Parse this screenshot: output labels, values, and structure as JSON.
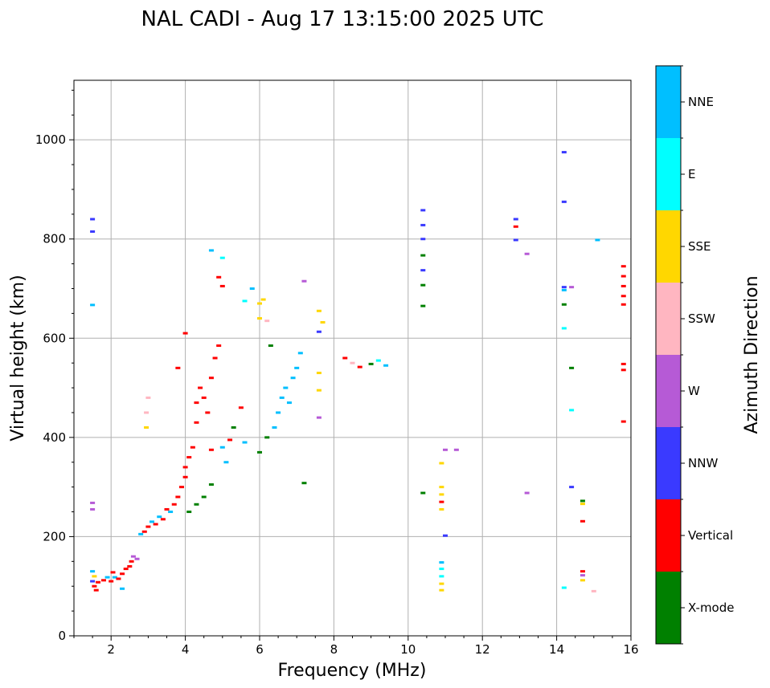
{
  "chart_data": {
    "type": "scatter",
    "title": "NAL CADI - Aug 17 13:15:00 2025 UTC",
    "xlabel": "Frequency (MHz)",
    "ylabel": "Virtual height (km)",
    "xlim": [
      1,
      16
    ],
    "ylim": [
      0,
      1120
    ],
    "xticks": [
      2,
      4,
      6,
      8,
      10,
      12,
      14,
      16
    ],
    "yticks": [
      0,
      200,
      400,
      600,
      800,
      1000
    ],
    "grid": true,
    "colorbar": {
      "label": "Azimuth Direction",
      "categories": [
        {
          "name": "X-mode",
          "color": "#008000"
        },
        {
          "name": "Vertical",
          "color": "#ff0000"
        },
        {
          "name": "NNW",
          "color": "#3a3aff"
        },
        {
          "name": "W",
          "color": "#b65ad6"
        },
        {
          "name": "SSW",
          "color": "#ffb6c1"
        },
        {
          "name": "SSE",
          "color": "#ffd700"
        },
        {
          "name": "E",
          "color": "#00ffff"
        },
        {
          "name": "NNE",
          "color": "#00bfff"
        }
      ]
    },
    "points": [
      {
        "f": 1.5,
        "h": 840,
        "dir": "NNW"
      },
      {
        "f": 1.5,
        "h": 815,
        "dir": "NNW"
      },
      {
        "f": 1.5,
        "h": 667,
        "dir": "NNE"
      },
      {
        "f": 1.5,
        "h": 268,
        "dir": "W"
      },
      {
        "f": 1.5,
        "h": 255,
        "dir": "W"
      },
      {
        "f": 1.5,
        "h": 130,
        "dir": "NNE"
      },
      {
        "f": 1.55,
        "h": 120,
        "dir": "SSE"
      },
      {
        "f": 1.5,
        "h": 110,
        "dir": "NNW"
      },
      {
        "f": 1.55,
        "h": 100,
        "dir": "Vertical"
      },
      {
        "f": 1.6,
        "h": 92,
        "dir": "Vertical"
      },
      {
        "f": 1.65,
        "h": 108,
        "dir": "Vertical"
      },
      {
        "f": 1.8,
        "h": 112,
        "dir": "Vertical"
      },
      {
        "f": 1.9,
        "h": 118,
        "dir": "NNE"
      },
      {
        "f": 2.0,
        "h": 110,
        "dir": "Vertical"
      },
      {
        "f": 2.05,
        "h": 128,
        "dir": "Vertical"
      },
      {
        "f": 2.1,
        "h": 118,
        "dir": "NNE"
      },
      {
        "f": 2.2,
        "h": 115,
        "dir": "Vertical"
      },
      {
        "f": 2.3,
        "h": 125,
        "dir": "Vertical"
      },
      {
        "f": 2.3,
        "h": 95,
        "dir": "NNE"
      },
      {
        "f": 2.4,
        "h": 135,
        "dir": "Vertical"
      },
      {
        "f": 2.5,
        "h": 140,
        "dir": "Vertical"
      },
      {
        "f": 2.55,
        "h": 150,
        "dir": "Vertical"
      },
      {
        "f": 2.6,
        "h": 160,
        "dir": "W"
      },
      {
        "f": 2.7,
        "h": 155,
        "dir": "W"
      },
      {
        "f": 2.8,
        "h": 205,
        "dir": "NNE"
      },
      {
        "f": 2.9,
        "h": 210,
        "dir": "Vertical"
      },
      {
        "f": 3.0,
        "h": 220,
        "dir": "Vertical"
      },
      {
        "f": 3.0,
        "h": 480,
        "dir": "SSW"
      },
      {
        "f": 2.95,
        "h": 450,
        "dir": "SSW"
      },
      {
        "f": 2.95,
        "h": 420,
        "dir": "SSE"
      },
      {
        "f": 3.1,
        "h": 230,
        "dir": "NNE"
      },
      {
        "f": 3.2,
        "h": 225,
        "dir": "Vertical"
      },
      {
        "f": 3.3,
        "h": 240,
        "dir": "NNE"
      },
      {
        "f": 3.4,
        "h": 235,
        "dir": "Vertical"
      },
      {
        "f": 3.5,
        "h": 255,
        "dir": "Vertical"
      },
      {
        "f": 3.6,
        "h": 250,
        "dir": "NNE"
      },
      {
        "f": 3.7,
        "h": 265,
        "dir": "Vertical"
      },
      {
        "f": 3.8,
        "h": 280,
        "dir": "Vertical"
      },
      {
        "f": 3.9,
        "h": 300,
        "dir": "Vertical"
      },
      {
        "f": 4.0,
        "h": 320,
        "dir": "Vertical"
      },
      {
        "f": 4.0,
        "h": 340,
        "dir": "Vertical"
      },
      {
        "f": 4.1,
        "h": 360,
        "dir": "Vertical"
      },
      {
        "f": 4.1,
        "h": 250,
        "dir": "X-mode"
      },
      {
        "f": 4.3,
        "h": 265,
        "dir": "X-mode"
      },
      {
        "f": 4.5,
        "h": 280,
        "dir": "X-mode"
      },
      {
        "f": 4.7,
        "h": 305,
        "dir": "X-mode"
      },
      {
        "f": 4.0,
        "h": 610,
        "dir": "Vertical"
      },
      {
        "f": 3.8,
        "h": 540,
        "dir": "Vertical"
      },
      {
        "f": 4.2,
        "h": 380,
        "dir": "Vertical"
      },
      {
        "f": 4.3,
        "h": 430,
        "dir": "Vertical"
      },
      {
        "f": 4.3,
        "h": 470,
        "dir": "Vertical"
      },
      {
        "f": 4.4,
        "h": 500,
        "dir": "Vertical"
      },
      {
        "f": 4.5,
        "h": 480,
        "dir": "Vertical"
      },
      {
        "f": 4.6,
        "h": 450,
        "dir": "Vertical"
      },
      {
        "f": 4.7,
        "h": 520,
        "dir": "Vertical"
      },
      {
        "f": 4.7,
        "h": 375,
        "dir": "Vertical"
      },
      {
        "f": 4.8,
        "h": 560,
        "dir": "Vertical"
      },
      {
        "f": 4.9,
        "h": 585,
        "dir": "Vertical"
      },
      {
        "f": 5.0,
        "h": 380,
        "dir": "NNE"
      },
      {
        "f": 5.1,
        "h": 350,
        "dir": "NNE"
      },
      {
        "f": 5.2,
        "h": 395,
        "dir": "Vertical"
      },
      {
        "f": 5.3,
        "h": 420,
        "dir": "X-mode"
      },
      {
        "f": 5.5,
        "h": 460,
        "dir": "Vertical"
      },
      {
        "f": 5.6,
        "h": 390,
        "dir": "NNE"
      },
      {
        "f": 5.8,
        "h": 700,
        "dir": "NNE"
      },
      {
        "f": 5.6,
        "h": 675,
        "dir": "E"
      },
      {
        "f": 4.7,
        "h": 777,
        "dir": "NNE"
      },
      {
        "f": 5.0,
        "h": 762,
        "dir": "E"
      },
      {
        "f": 4.9,
        "h": 723,
        "dir": "Vertical"
      },
      {
        "f": 5.0,
        "h": 705,
        "dir": "Vertical"
      },
      {
        "f": 6.0,
        "h": 670,
        "dir": "SSE"
      },
      {
        "f": 6.0,
        "h": 640,
        "dir": "SSE"
      },
      {
        "f": 6.1,
        "h": 678,
        "dir": "SSE"
      },
      {
        "f": 6.2,
        "h": 635,
        "dir": "SSW"
      },
      {
        "f": 6.0,
        "h": 370,
        "dir": "X-mode"
      },
      {
        "f": 6.2,
        "h": 400,
        "dir": "X-mode"
      },
      {
        "f": 6.3,
        "h": 585,
        "dir": "X-mode"
      },
      {
        "f": 6.4,
        "h": 420,
        "dir": "NNE"
      },
      {
        "f": 6.5,
        "h": 450,
        "dir": "NNE"
      },
      {
        "f": 6.6,
        "h": 480,
        "dir": "NNE"
      },
      {
        "f": 6.7,
        "h": 500,
        "dir": "NNE"
      },
      {
        "f": 6.8,
        "h": 470,
        "dir": "NNE"
      },
      {
        "f": 6.9,
        "h": 520,
        "dir": "NNE"
      },
      {
        "f": 7.0,
        "h": 540,
        "dir": "NNE"
      },
      {
        "f": 7.1,
        "h": 570,
        "dir": "NNE"
      },
      {
        "f": 7.2,
        "h": 715,
        "dir": "W"
      },
      {
        "f": 7.2,
        "h": 308,
        "dir": "X-mode"
      },
      {
        "f": 7.6,
        "h": 655,
        "dir": "SSE"
      },
      {
        "f": 7.7,
        "h": 632,
        "dir": "SSE"
      },
      {
        "f": 7.6,
        "h": 613,
        "dir": "NNW"
      },
      {
        "f": 7.6,
        "h": 530,
        "dir": "SSE"
      },
      {
        "f": 7.6,
        "h": 495,
        "dir": "SSE"
      },
      {
        "f": 7.6,
        "h": 440,
        "dir": "W"
      },
      {
        "f": 8.3,
        "h": 560,
        "dir": "Vertical"
      },
      {
        "f": 8.5,
        "h": 550,
        "dir": "SSW"
      },
      {
        "f": 8.7,
        "h": 542,
        "dir": "Vertical"
      },
      {
        "f": 9.0,
        "h": 548,
        "dir": "X-mode"
      },
      {
        "f": 9.2,
        "h": 555,
        "dir": "E"
      },
      {
        "f": 9.4,
        "h": 545,
        "dir": "NNE"
      },
      {
        "f": 10.4,
        "h": 858,
        "dir": "NNW"
      },
      {
        "f": 10.4,
        "h": 828,
        "dir": "NNW"
      },
      {
        "f": 10.4,
        "h": 800,
        "dir": "NNW"
      },
      {
        "f": 10.4,
        "h": 767,
        "dir": "X-mode"
      },
      {
        "f": 10.4,
        "h": 737,
        "dir": "NNW"
      },
      {
        "f": 10.4,
        "h": 707,
        "dir": "X-mode"
      },
      {
        "f": 10.4,
        "h": 665,
        "dir": "X-mode"
      },
      {
        "f": 10.4,
        "h": 288,
        "dir": "X-mode"
      },
      {
        "f": 10.9,
        "h": 348,
        "dir": "SSE"
      },
      {
        "f": 10.9,
        "h": 300,
        "dir": "SSE"
      },
      {
        "f": 10.9,
        "h": 285,
        "dir": "SSE"
      },
      {
        "f": 10.9,
        "h": 270,
        "dir": "Vertical"
      },
      {
        "f": 10.9,
        "h": 255,
        "dir": "SSE"
      },
      {
        "f": 10.9,
        "h": 148,
        "dir": "NNE"
      },
      {
        "f": 10.9,
        "h": 135,
        "dir": "E"
      },
      {
        "f": 10.9,
        "h": 120,
        "dir": "E"
      },
      {
        "f": 10.9,
        "h": 105,
        "dir": "SSE"
      },
      {
        "f": 10.9,
        "h": 92,
        "dir": "SSE"
      },
      {
        "f": 11.0,
        "h": 375,
        "dir": "W"
      },
      {
        "f": 11.3,
        "h": 375,
        "dir": "W"
      },
      {
        "f": 11.0,
        "h": 202,
        "dir": "NNW"
      },
      {
        "f": 12.9,
        "h": 840,
        "dir": "NNW"
      },
      {
        "f": 12.9,
        "h": 825,
        "dir": "Vertical"
      },
      {
        "f": 12.9,
        "h": 798,
        "dir": "NNW"
      },
      {
        "f": 13.2,
        "h": 770,
        "dir": "W"
      },
      {
        "f": 13.2,
        "h": 288,
        "dir": "W"
      },
      {
        "f": 14.2,
        "h": 975,
        "dir": "NNW"
      },
      {
        "f": 14.2,
        "h": 875,
        "dir": "NNW"
      },
      {
        "f": 14.2,
        "h": 703,
        "dir": "NNW"
      },
      {
        "f": 14.2,
        "h": 697,
        "dir": "NNE"
      },
      {
        "f": 14.4,
        "h": 703,
        "dir": "W"
      },
      {
        "f": 14.2,
        "h": 668,
        "dir": "X-mode"
      },
      {
        "f": 14.2,
        "h": 620,
        "dir": "E"
      },
      {
        "f": 14.4,
        "h": 540,
        "dir": "X-mode"
      },
      {
        "f": 14.4,
        "h": 455,
        "dir": "E"
      },
      {
        "f": 14.4,
        "h": 300,
        "dir": "NNW"
      },
      {
        "f": 14.2,
        "h": 97,
        "dir": "E"
      },
      {
        "f": 14.7,
        "h": 272,
        "dir": "X-mode"
      },
      {
        "f": 14.7,
        "h": 266,
        "dir": "SSE"
      },
      {
        "f": 14.7,
        "h": 231,
        "dir": "Vertical"
      },
      {
        "f": 14.7,
        "h": 130,
        "dir": "Vertical"
      },
      {
        "f": 14.7,
        "h": 122,
        "dir": "W"
      },
      {
        "f": 14.7,
        "h": 112,
        "dir": "SSE"
      },
      {
        "f": 15.0,
        "h": 90,
        "dir": "SSW"
      },
      {
        "f": 15.1,
        "h": 798,
        "dir": "NNE"
      },
      {
        "f": 15.8,
        "h": 745,
        "dir": "Vertical"
      },
      {
        "f": 15.8,
        "h": 725,
        "dir": "Vertical"
      },
      {
        "f": 15.8,
        "h": 705,
        "dir": "Vertical"
      },
      {
        "f": 15.8,
        "h": 685,
        "dir": "Vertical"
      },
      {
        "f": 15.8,
        "h": 668,
        "dir": "Vertical"
      },
      {
        "f": 15.8,
        "h": 548,
        "dir": "Vertical"
      },
      {
        "f": 15.8,
        "h": 536,
        "dir": "Vertical"
      },
      {
        "f": 15.8,
        "h": 432,
        "dir": "Vertical"
      }
    ]
  }
}
